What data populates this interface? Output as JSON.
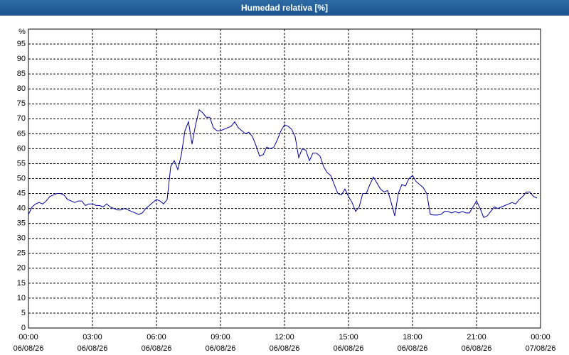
{
  "chart_data": {
    "type": "line",
    "title": "Humedad relativa [%]",
    "ylabel": "%",
    "color": "#0000a0",
    "grid": true,
    "xlim": [
      0,
      1440
    ],
    "ylim": [
      0,
      100
    ],
    "yticks": [
      0,
      5,
      10,
      15,
      20,
      25,
      30,
      35,
      40,
      45,
      50,
      55,
      60,
      65,
      70,
      75,
      80,
      85,
      90,
      95
    ],
    "xticks": [
      {
        "value": 0,
        "label": "00:00\n06/08/26"
      },
      {
        "value": 180,
        "label": "03:00\n06/08/26"
      },
      {
        "value": 360,
        "label": "06:00\n06/08/26"
      },
      {
        "value": 540,
        "label": "09:00\n06/08/26"
      },
      {
        "value": 720,
        "label": "12:00\n06/08/26"
      },
      {
        "value": 900,
        "label": "15:00\n06/08/26"
      },
      {
        "value": 1080,
        "label": "18:00\n06/08/26"
      },
      {
        "value": 1260,
        "label": "21:00\n06/08/26"
      },
      {
        "value": 1440,
        "label": "00:00\n07/08/26"
      }
    ],
    "x": [
      0,
      10,
      20,
      30,
      40,
      50,
      60,
      70,
      80,
      90,
      100,
      110,
      120,
      130,
      140,
      150,
      160,
      170,
      180,
      190,
      200,
      210,
      220,
      230,
      240,
      250,
      260,
      270,
      280,
      290,
      300,
      310,
      320,
      330,
      340,
      350,
      360,
      370,
      380,
      390,
      400,
      410,
      420,
      430,
      440,
      450,
      460,
      470,
      480,
      490,
      500,
      510,
      520,
      530,
      540,
      550,
      560,
      570,
      580,
      590,
      600,
      610,
      620,
      630,
      640,
      650,
      660,
      670,
      680,
      690,
      700,
      710,
      720,
      730,
      740,
      750,
      760,
      770,
      780,
      790,
      800,
      810,
      820,
      830,
      840,
      850,
      860,
      870,
      880,
      890,
      900,
      910,
      920,
      930,
      940,
      950,
      960,
      970,
      980,
      990,
      1000,
      1010,
      1020,
      1030,
      1040,
      1050,
      1060,
      1070,
      1080,
      1090,
      1100,
      1110,
      1120,
      1130,
      1140,
      1150,
      1160,
      1170,
      1180,
      1190,
      1200,
      1210,
      1220,
      1230,
      1240,
      1250,
      1260,
      1270,
      1280,
      1290,
      1300,
      1310,
      1320,
      1330,
      1340,
      1350,
      1360,
      1370,
      1380,
      1390,
      1400,
      1410,
      1420,
      1430
    ],
    "values": [
      38,
      40.5,
      41.5,
      42,
      41.5,
      42.5,
      44,
      44.5,
      45,
      45,
      44.5,
      43,
      42.5,
      42,
      42.5,
      42.5,
      41,
      41.5,
      41.5,
      41,
      41,
      40.5,
      41.5,
      40.5,
      40,
      39.5,
      39.5,
      40,
      39.5,
      39,
      38.5,
      38,
      38.5,
      40,
      41,
      42,
      43,
      42.5,
      41.5,
      43,
      54,
      56,
      53,
      58,
      66,
      69,
      61.5,
      68,
      73,
      72,
      70.5,
      70.5,
      67,
      66,
      66,
      66.5,
      67,
      67.5,
      69,
      67,
      66,
      65,
      65.5,
      64,
      61,
      57.5,
      58,
      60.5,
      60,
      60.5,
      63,
      66,
      68,
      67.5,
      66.5,
      64,
      57,
      60,
      59.5,
      56,
      58.5,
      58.5,
      57.5,
      54,
      52,
      51,
      48,
      45,
      44.5,
      46.5,
      44,
      42,
      39,
      40.5,
      45,
      45,
      48,
      50.5,
      48.5,
      46.5,
      45.5,
      46,
      42,
      37.5,
      45,
      48,
      47.5,
      50,
      51,
      49,
      48,
      47,
      45,
      38,
      37.8,
      37.8,
      38,
      39,
      39,
      38.5,
      39,
      38.5,
      39,
      38.5,
      38.5,
      40.5,
      42.5,
      40,
      37,
      37.5,
      39,
      40.5,
      40,
      40.5,
      41,
      41.5,
      42,
      41.5,
      43,
      44,
      45.5,
      45.5,
      44,
      43.5
    ]
  }
}
